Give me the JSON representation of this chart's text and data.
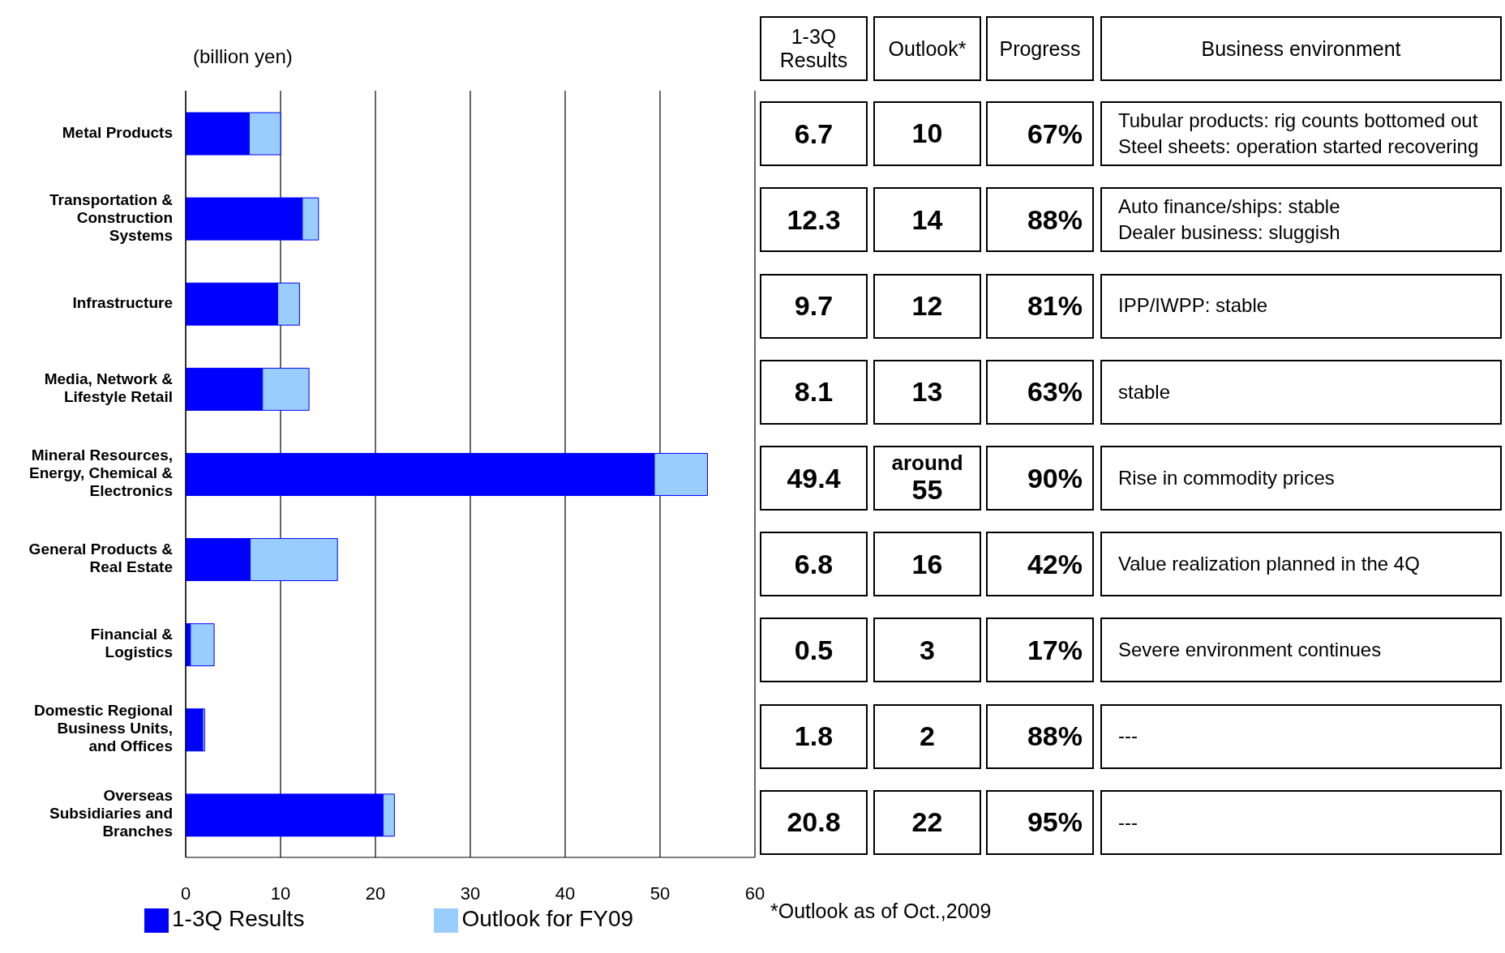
{
  "chart_data": {
    "type": "bar",
    "orientation": "horizontal",
    "stacked": true,
    "xlabel": "(billion yen)",
    "categories": [
      "Metal Products",
      "Transportation & Construction Systems",
      "Infrastructure",
      "Media, Network & Lifestyle Retail",
      "Mineral Resources, Energy, Chemical & Electronics",
      "General Products & Real Estate",
      "Financial & Logistics",
      "Domestic Regional Business Units, and Offices",
      "Overseas Subsidiaries and Branches"
    ],
    "series": [
      {
        "name": "1-3Q Results",
        "color": "#0000ff",
        "values": [
          6.7,
          12.3,
          9.7,
          8.1,
          49.4,
          6.8,
          0.5,
          1.8,
          20.8
        ],
        "value_labels": [
          "6.7",
          "12.3",
          "9.7",
          "8.1",
          "49.4",
          "6.8",
          "0.5",
          "1.8",
          "20.8"
        ]
      },
      {
        "name": "Outlook for FY09",
        "color": "#99ccff",
        "values": [
          3.3,
          1.7,
          2.3,
          4.9,
          5.6,
          9.2,
          2.5,
          0.2,
          1.2
        ]
      }
    ],
    "xlim": [
      0,
      60
    ],
    "xticks": [
      0,
      10,
      20,
      30,
      40,
      50,
      60
    ],
    "grid": "x",
    "legend": "bottom",
    "annotations": [
      "1-3Q Results",
      "Outlook*",
      "Progress",
      "Business environment",
      "10",
      "14",
      "12",
      "13",
      "around 55",
      "16",
      "3",
      "2",
      "22",
      "67%",
      "88%",
      "81%",
      "63%",
      "90%",
      "42%",
      "17%",
      "88%",
      "95%",
      "Tubular products: rig counts bottomed out\nSteel sheets: operation started recovering",
      "Auto finance/ships: stable\nDealer business: sluggish",
      "IPP/IWPP: stable",
      "stable",
      "Rise in commodity prices",
      "Value realization planned in the 4Q",
      "Severe environment continues",
      "---",
      "---",
      "*Outlook as of Oct.,2009"
    ]
  }
}
